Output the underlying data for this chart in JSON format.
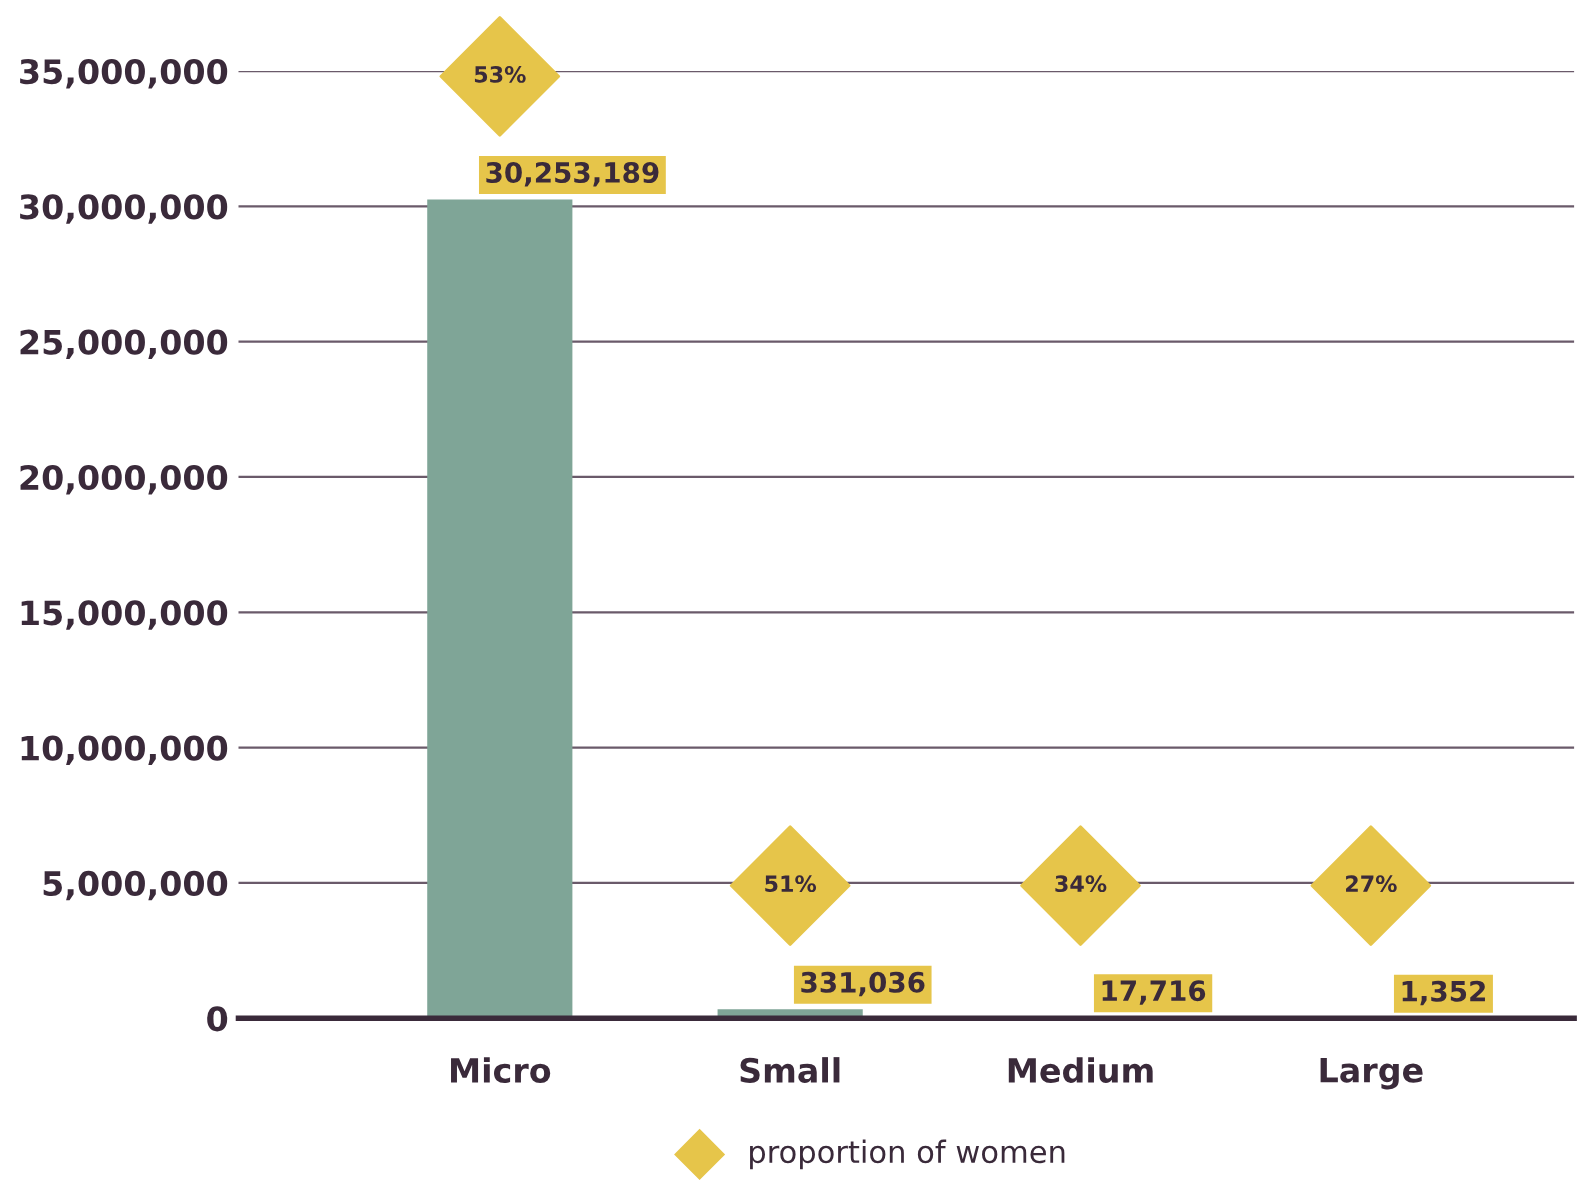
{
  "chart_data": {
    "type": "bar",
    "categories": [
      "Micro",
      "Small",
      "Medium",
      "Large"
    ],
    "series": [
      {
        "color": "#7fa597",
        "values": [
          30253189,
          331036,
          17716,
          1352
        ],
        "value_labels": [
          "30,253,189",
          "331,036",
          "17,716",
          "1,352"
        ]
      }
    ],
    "annotations": [
      "53%",
      "51%",
      "34%",
      "27%",
      "proportion of women"
    ],
    "ylim": [
      0,
      35000000
    ],
    "yticks": [
      {
        "value": 0,
        "label": "0"
      },
      {
        "value": 5000000,
        "label": "5,000,000"
      },
      {
        "value": 10000000,
        "label": "10,000,000"
      },
      {
        "value": 15000000,
        "label": "15,000,000"
      },
      {
        "value": 20000000,
        "label": "20,000,000"
      },
      {
        "value": 25000000,
        "label": "25,000,000"
      },
      {
        "value": 30000000,
        "label": "30,000,000"
      },
      {
        "value": 35000000,
        "label": "35,000,000"
      }
    ],
    "grid": "y"
  }
}
